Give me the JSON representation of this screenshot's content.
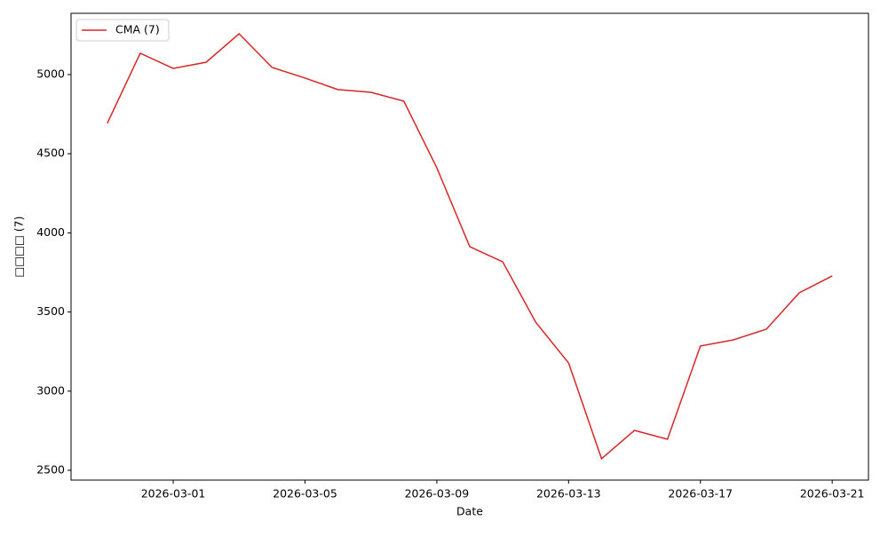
{
  "chart_data": {
    "type": "line",
    "xlabel": "Date",
    "ylabel": "□□□□ (7)",
    "x": [
      "2026-02-27",
      "2026-02-28",
      "2026-03-01",
      "2026-03-02",
      "2026-03-03",
      "2026-03-04",
      "2026-03-05",
      "2026-03-06",
      "2026-03-07",
      "2026-03-08",
      "2026-03-09",
      "2026-03-10",
      "2026-03-11",
      "2026-03-12",
      "2026-03-13",
      "2026-03-14",
      "2026-03-15",
      "2026-03-16",
      "2026-03-17",
      "2026-03-18",
      "2026-03-19",
      "2026-03-20",
      "2026-03-21"
    ],
    "series": [
      {
        "name": "CMA (7)",
        "color": "#d62728",
        "values": [
          4692,
          5135,
          5039,
          5078,
          5258,
          5045,
          4978,
          4905,
          4888,
          4832,
          4411,
          3913,
          3817,
          3436,
          3178,
          2573,
          2752,
          2696,
          3285,
          3324,
          3391,
          3621,
          3728
        ]
      }
    ],
    "xlim": [
      "2026-02-25T21:36",
      "2026-03-22T02:24"
    ],
    "xticks": [
      "2026-03-01",
      "2026-03-05",
      "2026-03-09",
      "2026-03-13",
      "2026-03-17",
      "2026-03-21"
    ],
    "ylim": [
      2438,
      5387
    ],
    "yticks": [
      2500,
      3000,
      3500,
      4000,
      4500,
      5000
    ],
    "legend": "upper-left"
  }
}
